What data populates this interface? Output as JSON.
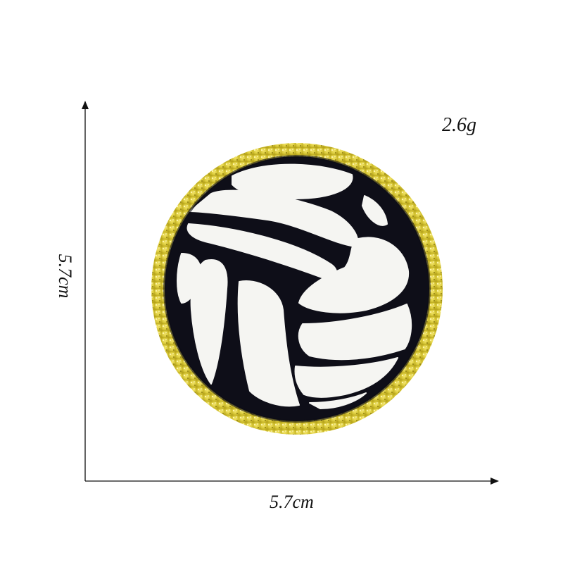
{
  "annotations": {
    "weight": "2.6g",
    "width": "5.7cm",
    "height": "5.7cm"
  },
  "product": {
    "icon": "volleyball-icon",
    "colors": {
      "border_gold": "#d9c93a",
      "border_gold_dark": "#b8a51c",
      "outline": "#0e0e18",
      "panel": "#f5f5f2"
    }
  }
}
